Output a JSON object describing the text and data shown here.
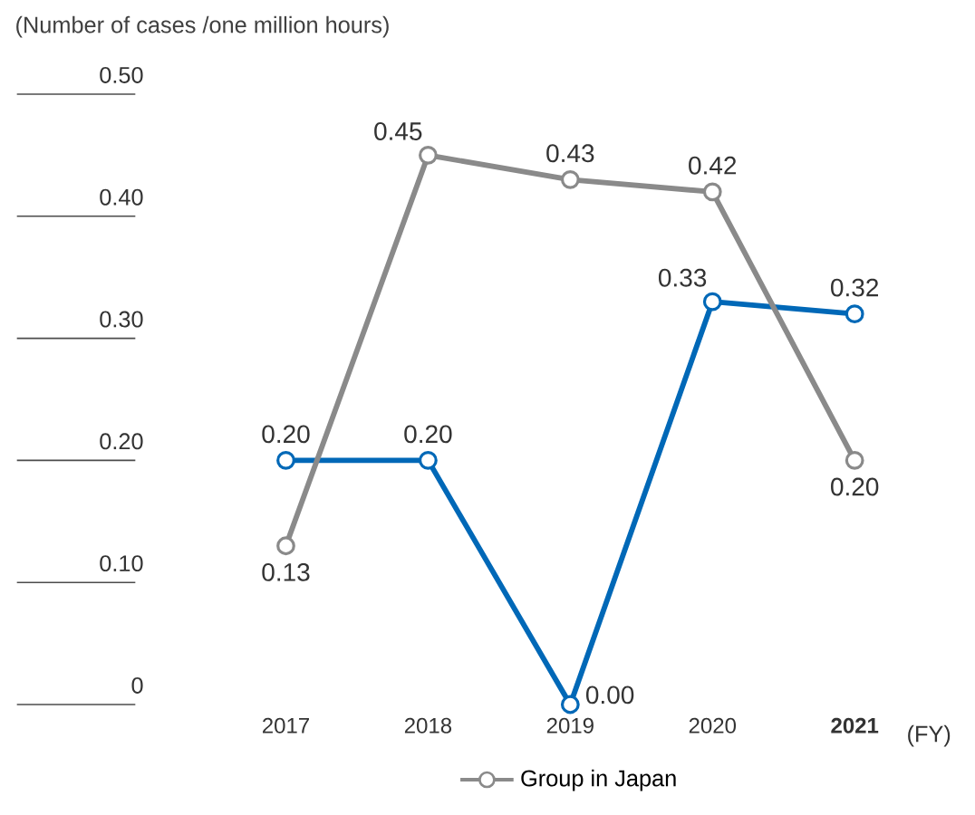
{
  "chart_data": {
    "type": "line",
    "ylabel": "(Number of cases /one million hours)",
    "xlabel": "(FY)",
    "categories": [
      "2017",
      "2018",
      "2019",
      "2020",
      "**2021**"
    ],
    "series": [
      {
        "color": "#0068b7",
        "values": [
          0.2,
          0.2,
          0.0,
          0.33,
          0.32
        ],
        "value_labels": [
          "0.20",
          "0.20",
          "0.00",
          "0.33",
          "0.32"
        ]
      },
      {
        "name": "Group in Japan",
        "color": "#8a8a8a",
        "values": [
          0.13,
          0.45,
          0.43,
          0.42,
          0.2
        ],
        "value_labels": [
          "0.13",
          "0.45",
          "0.43",
          "0.42",
          "0.20"
        ]
      }
    ],
    "ylim": [
      0,
      0.5
    ],
    "yticks": [
      {
        "value": 0,
        "label": "0"
      },
      {
        "value": 0.1,
        "label": "0.10"
      },
      {
        "value": 0.2,
        "label": "0.20"
      },
      {
        "value": 0.3,
        "label": "0.30"
      },
      {
        "value": 0.4,
        "label": "0.40"
      },
      {
        "value": 0.5,
        "label": "0.50"
      }
    ],
    "marker": "circle",
    "line_style": "solid",
    "legend": "bottom"
  }
}
